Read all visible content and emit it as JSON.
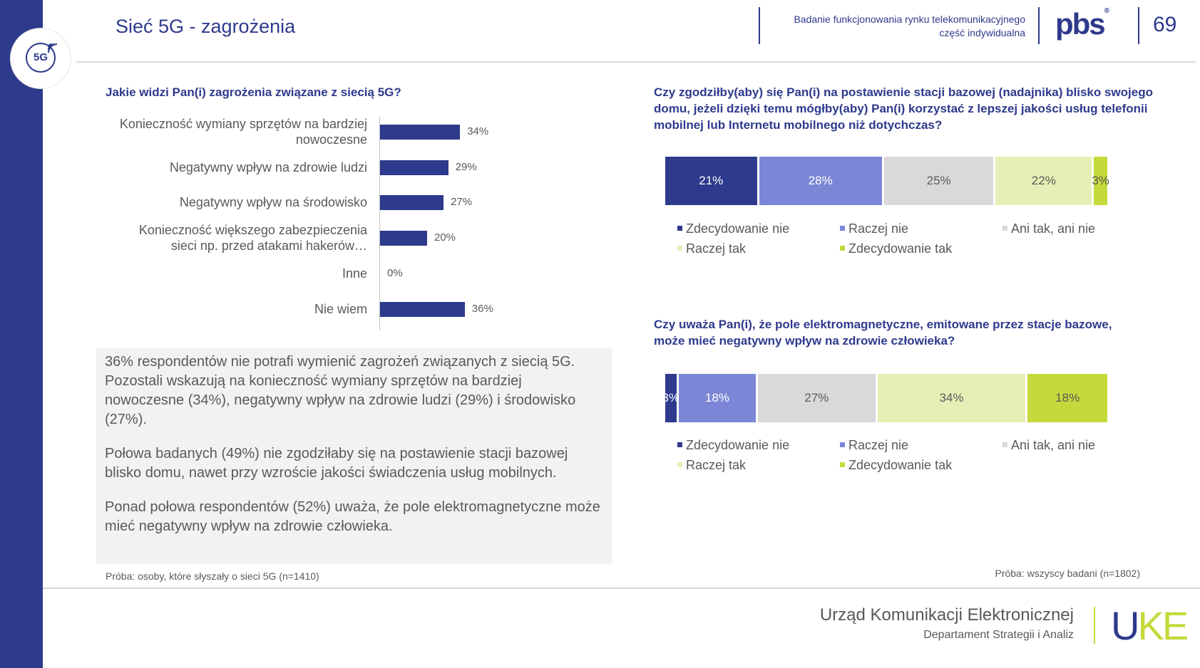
{
  "header": {
    "title": "Sieć 5G - zagrożenia",
    "badge": "5G",
    "study_line1": "Badanie funkcjonowania rynku telekomunikacyjnego",
    "study_line2": "część indywidualna",
    "brand": "pbs",
    "brand_mark": "®",
    "page_number": "69"
  },
  "left": {
    "question": "Jakie widzi Pan(i) zagrożenia związane z siecią 5G?",
    "summary": [
      "36% respondentów nie potrafi wymienić zagrożeń związanych z siecią 5G. Pozostali wskazują na konieczność wymiany sprzętów na bardziej nowoczesne (34%), negatywny wpływ na zdrowie ludzi (29%) i środowisko (27%).",
      "Połowa badanych (49%) nie zgodziłaby się na postawienie stacji bazowej blisko domu, nawet przy wzroście jakości świadczenia usług mobilnych.",
      "Ponad połowa respondentów (52%) uważa, że pole elektromagnetyczne może mieć negatywny wpływ na zdrowie człowieka."
    ],
    "sample": "Próba: osoby, które słyszały o sieci 5G (n=1410)"
  },
  "right": {
    "question1": "Czy zgodziłby(aby) się Pan(i) na postawienie stacji bazowej (nadajnika) blisko swojego domu, jeżeli dzięki temu mógłby(aby) Pan(i) korzystać z lepszej jakości usług telefonii mobilnej lub Internetu mobilnego niż dotychczas?",
    "question2": "Czy uważa Pan(i), że pole elektromagnetyczne, emitowane przez stacje bazowe, może mieć negatywny wpływ na zdrowie człowieka?",
    "sample": "Próba: wszyscy badani (n=1802)"
  },
  "footer": {
    "org": "Urząd Komunikacji Elektronicznej",
    "dept": "Departament Strategii i Analiz",
    "logo_u": "U",
    "logo_k": "K",
    "logo_e": "E"
  },
  "chart_data": [
    {
      "type": "bar",
      "orientation": "horizontal",
      "categories": [
        "Konieczność wymiany sprzętów na bardziej nowoczesne",
        "Negatywny wpływ na zdrowie ludzi",
        "Negatywny wpływ na środowisko",
        "Konieczność większego zabezpieczenia sieci np. przed atakami hakerów…",
        "Inne",
        "Nie wiem"
      ],
      "values": [
        34,
        29,
        27,
        20,
        0,
        36
      ],
      "labels": [
        "34%",
        "29%",
        "27%",
        "20%",
        "0%",
        "36%"
      ],
      "color": "#2e3a8c",
      "xlim": [
        0,
        100
      ]
    },
    {
      "type": "bar",
      "orientation": "horizontal-stacked-100",
      "series": [
        {
          "name": "Zdecydowanie nie",
          "value": 21,
          "label": "21%",
          "color": "#2e3a8c"
        },
        {
          "name": "Raczej nie",
          "value": 28,
          "label": "28%",
          "color": "#7b86d6"
        },
        {
          "name": "Ani tak, ani nie",
          "value": 25,
          "label": "25%",
          "color": "#d9d9d9"
        },
        {
          "name": "Raczej tak",
          "value": 22,
          "label": "22%",
          "color": "#e6efb5"
        },
        {
          "name": "Zdecydowanie tak",
          "value": 3,
          "label": "3%",
          "color": "#c5d93b"
        }
      ]
    },
    {
      "type": "bar",
      "orientation": "horizontal-stacked-100",
      "series": [
        {
          "name": "Zdecydowanie nie",
          "value": 3,
          "label": "3%",
          "color": "#2e3a8c"
        },
        {
          "name": "Raczej nie",
          "value": 18,
          "label": "18%",
          "color": "#7b86d6"
        },
        {
          "name": "Ani tak, ani nie",
          "value": 27,
          "label": "27%",
          "color": "#d9d9d9"
        },
        {
          "name": "Raczej tak",
          "value": 34,
          "label": "34%",
          "color": "#e6efb5"
        },
        {
          "name": "Zdecydowanie tak",
          "value": 18,
          "label": "18%",
          "color": "#c5d93b"
        }
      ]
    }
  ]
}
